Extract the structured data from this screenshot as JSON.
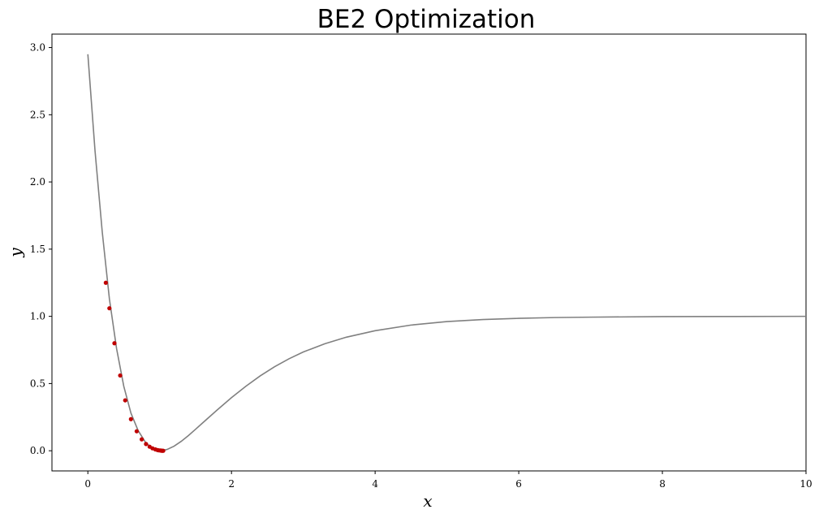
{
  "chart_data": {
    "type": "line",
    "title": "BE2 Optimization",
    "xlabel": "x",
    "ylabel": "y",
    "xlim": [
      -0.5,
      10
    ],
    "ylim": [
      -0.15,
      3.1
    ],
    "grid": false,
    "x_ticks": [
      0,
      2,
      4,
      6,
      8,
      10
    ],
    "x_tick_labels": [
      "0",
      "2",
      "4",
      "6",
      "8",
      "10"
    ],
    "y_ticks": [
      0.0,
      0.5,
      1.0,
      1.5,
      2.0,
      2.5,
      3.0
    ],
    "y_tick_labels": [
      "0.0",
      "0.5",
      "1.0",
      "1.5",
      "2.0",
      "2.5",
      "3.0"
    ],
    "curve": {
      "color": "#808080",
      "x": [
        0.0,
        0.1,
        0.2,
        0.3,
        0.4,
        0.5,
        0.6,
        0.7,
        0.8,
        0.9,
        1.0,
        1.1,
        1.2,
        1.3,
        1.4,
        1.5,
        1.6,
        1.8,
        2.0,
        2.2,
        2.4,
        2.6,
        2.8,
        3.0,
        3.3,
        3.6,
        4.0,
        4.5,
        5.0,
        5.5,
        6.0,
        6.5,
        7.0,
        8.0,
        9.0,
        10.0
      ],
      "y": [
        2.95,
        2.23,
        1.63,
        1.13,
        0.76,
        0.48,
        0.28,
        0.15,
        0.065,
        0.015,
        0.0,
        0.009,
        0.034,
        0.07,
        0.113,
        0.16,
        0.208,
        0.303,
        0.395,
        0.48,
        0.557,
        0.625,
        0.684,
        0.735,
        0.796,
        0.845,
        0.893,
        0.935,
        0.961,
        0.976,
        0.985,
        0.991,
        0.994,
        0.998,
        0.999,
        1.0
      ]
    },
    "points": {
      "color": "#c00000",
      "x": [
        0.25,
        0.3,
        0.37,
        0.45,
        0.52,
        0.6,
        0.68,
        0.75,
        0.81,
        0.86,
        0.9,
        0.94,
        0.97,
        0.99,
        1.01,
        1.02,
        1.03,
        1.04,
        1.05
      ],
      "y": [
        1.25,
        1.06,
        0.8,
        0.56,
        0.375,
        0.235,
        0.145,
        0.085,
        0.05,
        0.03,
        0.018,
        0.01,
        0.005,
        0.003,
        0.002,
        0.001,
        0.0,
        0.0,
        0.0
      ]
    }
  }
}
